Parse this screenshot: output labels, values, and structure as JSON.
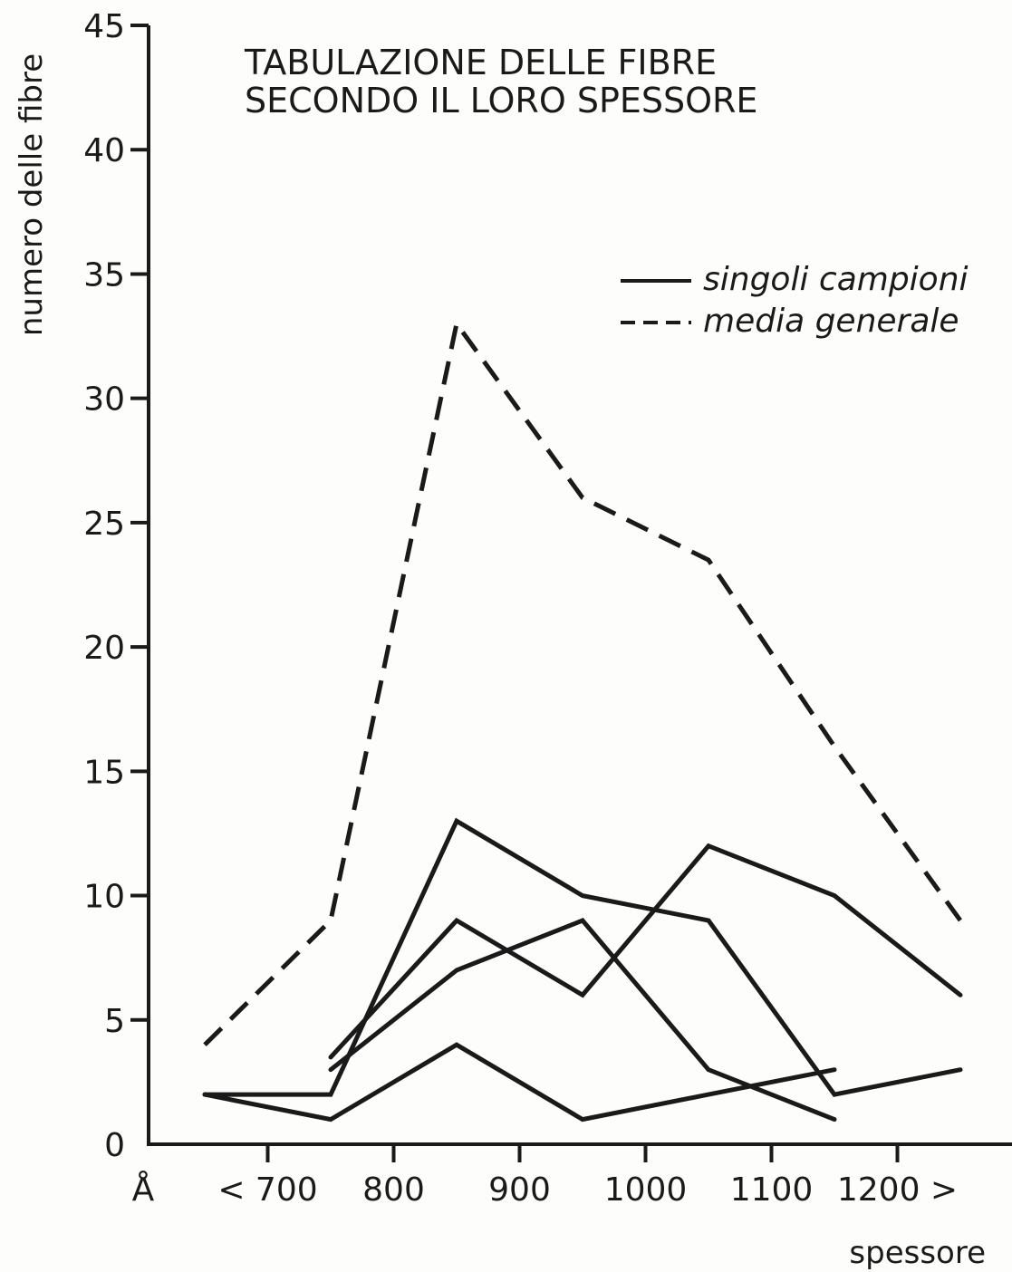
{
  "chart_data": {
    "type": "line",
    "title_lines": [
      "TABULAZIONE DELLE FIBRE",
      "SECONDO IL LORO SPESSORE"
    ],
    "ylabel": "numero delle fibre",
    "xlabel": "spessore",
    "x_unit": "Å",
    "ylim": [
      0,
      45
    ],
    "yticks": [
      0,
      5,
      10,
      15,
      20,
      25,
      30,
      35,
      40,
      45
    ],
    "xlim": [
      600,
      1300
    ],
    "xticks": [
      {
        "value": 700,
        "label": "< 700"
      },
      {
        "value": 800,
        "label": "800"
      },
      {
        "value": 900,
        "label": "900"
      },
      {
        "value": 1000,
        "label": "1000"
      },
      {
        "value": 1100,
        "label": "1100"
      },
      {
        "value": 1200,
        "label": "1200 >"
      }
    ],
    "legend": [
      {
        "label": "singoli campioni",
        "style": "solid"
      },
      {
        "label": "media generale",
        "style": "dashed"
      }
    ],
    "legend_position": "top-right",
    "grid": false,
    "series": [
      {
        "style": "dashed",
        "points": [
          [
            650,
            4
          ],
          [
            750,
            9
          ],
          [
            850,
            33
          ],
          [
            950,
            26
          ],
          [
            1050,
            23.5
          ],
          [
            1150,
            16
          ],
          [
            1250,
            9
          ]
        ]
      },
      {
        "style": "solid",
        "points": [
          [
            650,
            2
          ],
          [
            750,
            2
          ],
          [
            850,
            13
          ],
          [
            950,
            10
          ],
          [
            1050,
            9
          ],
          [
            1150,
            2
          ],
          [
            1250,
            3
          ]
        ]
      },
      {
        "style": "solid",
        "points": [
          [
            650,
            2
          ],
          [
            750,
            1
          ],
          [
            850,
            4
          ],
          [
            950,
            1
          ],
          [
            1050,
            2
          ],
          [
            1150,
            3
          ]
        ]
      },
      {
        "style": "solid",
        "points": [
          [
            750,
            3.5
          ],
          [
            850,
            9
          ],
          [
            950,
            6
          ],
          [
            1050,
            12
          ],
          [
            1150,
            10
          ],
          [
            1250,
            6
          ]
        ]
      },
      {
        "style": "solid",
        "points": [
          [
            750,
            3
          ],
          [
            850,
            7
          ],
          [
            950,
            9
          ],
          [
            1050,
            3
          ],
          [
            1150,
            1
          ]
        ]
      }
    ]
  }
}
